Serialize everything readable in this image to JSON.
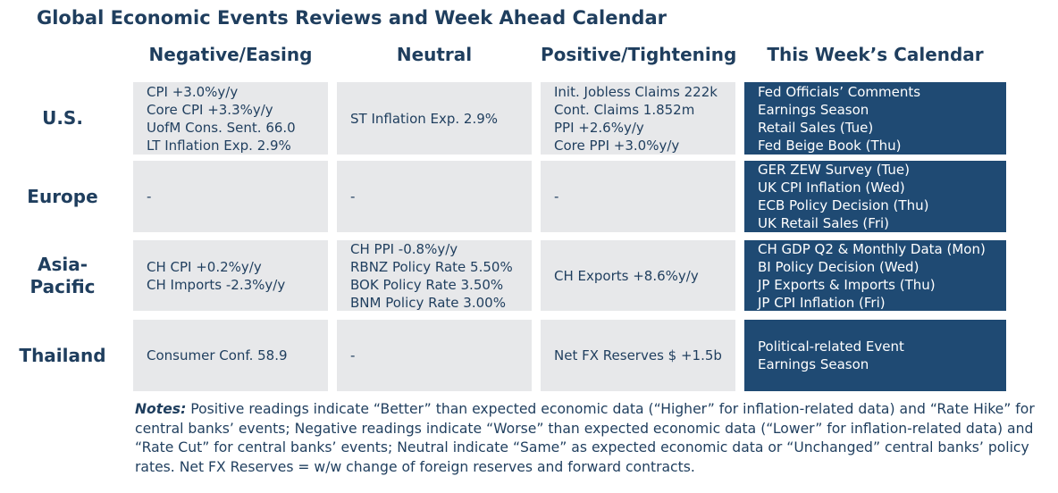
{
  "title": "Global Economic Events Reviews and Week Ahead Calendar",
  "columns": [
    "Negative/Easing",
    "Neutral",
    "Positive/Tightening",
    "This Week’s Calendar"
  ],
  "rows": [
    {
      "region": "U.S.",
      "negative": [
        "CPI +3.0%y/y",
        "Core CPI +3.3%y/y",
        "UofM Cons. Sent. 66.0",
        "LT Inflation Exp. 2.9%"
      ],
      "neutral": [
        "ST Inflation Exp. 2.9%"
      ],
      "positive": [
        "Init. Jobless Claims 222k",
        "Cont. Claims 1.852m",
        "PPI +2.6%y/y",
        "Core PPI +3.0%y/y"
      ],
      "calendar": [
        "Fed Officials’ Comments",
        "Earnings Season",
        "Retail Sales (Tue)",
        "Fed Beige Book (Thu)"
      ]
    },
    {
      "region": "Europe",
      "negative": [
        "-"
      ],
      "neutral": [
        "-"
      ],
      "positive": [
        "-"
      ],
      "calendar": [
        "GER ZEW Survey (Tue)",
        "UK CPI Inflation (Wed)",
        "ECB Policy Decision (Thu)",
        "UK Retail Sales (Fri)"
      ]
    },
    {
      "region": "Asia-Pacific",
      "negative": [
        "CH CPI +0.2%y/y",
        "CH Imports -2.3%y/y"
      ],
      "neutral": [
        "CH PPI -0.8%y/y",
        "RBNZ Policy Rate 5.50%",
        "BOK Policy Rate 3.50%",
        "BNM Policy Rate 3.00%"
      ],
      "positive": [
        "CH Exports +8.6%y/y"
      ],
      "calendar": [
        "CH GDP Q2 & Monthly Data (Mon)",
        "BI Policy Decision (Wed)",
        "JP Exports & Imports (Thu)",
        "JP CPI Inflation (Fri)"
      ]
    },
    {
      "region": "Thailand",
      "negative": [
        "Consumer Conf. 58.9"
      ],
      "neutral": [
        "-"
      ],
      "positive": [
        "Net FX Reserves $ +1.5b"
      ],
      "calendar": [
        "Political-related Event",
        "Earnings Season"
      ]
    }
  ],
  "notes": {
    "label": "Notes:",
    "text": " Positive readings indicate “Better” than expected economic data (“Higher” for inflation-related data) and “Rate Hike” for central banks’ events; Negative readings indicate “Worse” than expected economic data (“Lower” for inflation-related data) and “Rate Cut” for central banks’ events; Neutral indicate “Same” as expected economic data or “Unchanged” central banks’ policy rates. Net FX Reserves = w/w change of foreign reserves and forward contracts."
  }
}
